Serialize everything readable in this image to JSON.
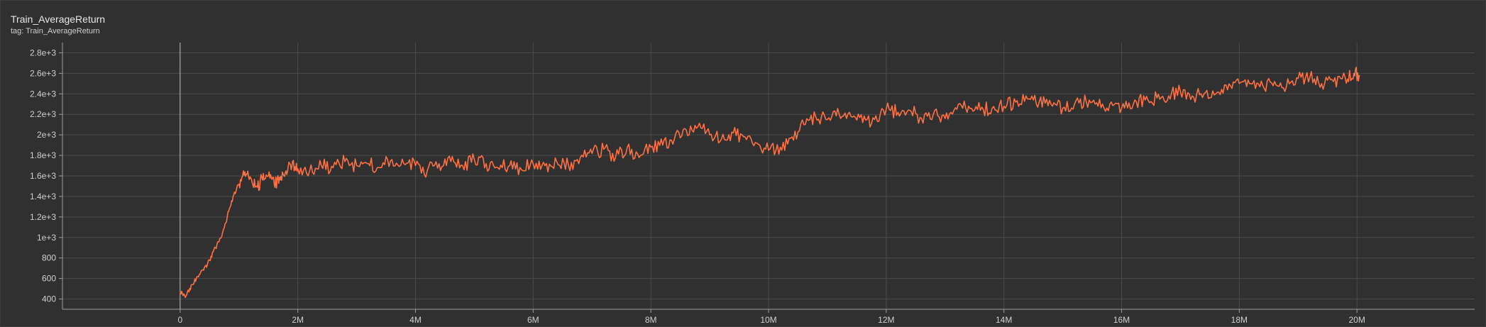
{
  "header": {
    "title": "Train_AverageReturn",
    "subtitle": "tag: Train_AverageReturn"
  },
  "colors": {
    "background": "#303030",
    "grid": "#4a4a4a",
    "axis": "#9e9e9e",
    "line": "#ff7043"
  },
  "chart_data": {
    "type": "line",
    "title": "Train_AverageReturn",
    "xlabel": "",
    "ylabel": "",
    "xlim": [
      -2000000,
      22000000
    ],
    "ylim": [
      300,
      2900
    ],
    "grid": true,
    "x_ticks": [
      0,
      2000000,
      4000000,
      6000000,
      8000000,
      10000000,
      12000000,
      14000000,
      16000000,
      18000000,
      20000000
    ],
    "x_tick_labels": [
      "0",
      "2M",
      "4M",
      "6M",
      "8M",
      "10M",
      "12M",
      "14M",
      "16M",
      "18M",
      "20M"
    ],
    "y_ticks": [
      400,
      600,
      800,
      1000,
      1200,
      1400,
      1600,
      1800,
      2000,
      2200,
      2400,
      2600,
      2800
    ],
    "y_tick_labels": [
      "400",
      "600",
      "800",
      "1e+3",
      "1.2e+3",
      "1.4e+3",
      "1.6e+3",
      "1.8e+3",
      "2e+3",
      "2.2e+3",
      "2.4e+3",
      "2.6e+3",
      "2.8e+3"
    ],
    "series": [
      {
        "x": [
          0,
          100000,
          200000,
          300000,
          400000,
          500000,
          600000,
          700000,
          800000,
          900000,
          1000000,
          1100000,
          1200000,
          1300000,
          1400000,
          1500000,
          1600000,
          1700000,
          1800000,
          1900000,
          2000000,
          2200000,
          2400000,
          2600000,
          2800000,
          3000000,
          3200000,
          3400000,
          3600000,
          3800000,
          4000000,
          4200000,
          4400000,
          4600000,
          4800000,
          5000000,
          5200000,
          5400000,
          5600000,
          5800000,
          6000000,
          6200000,
          6400000,
          6600000,
          6800000,
          7000000,
          7200000,
          7400000,
          7600000,
          7800000,
          8000000,
          8200000,
          8400000,
          8600000,
          8800000,
          9000000,
          9200000,
          9400000,
          9600000,
          9800000,
          10000000,
          10200000,
          10400000,
          10600000,
          10800000,
          11000000,
          11200000,
          11400000,
          11600000,
          11800000,
          12000000,
          12200000,
          12400000,
          12600000,
          12800000,
          13000000,
          13200000,
          13400000,
          13600000,
          13800000,
          14000000,
          14200000,
          14400000,
          14600000,
          14800000,
          15000000,
          15200000,
          15400000,
          15600000,
          15800000,
          16000000,
          16200000,
          16400000,
          16600000,
          16800000,
          17000000,
          17200000,
          17400000,
          17600000,
          17800000,
          18000000,
          18200000,
          18400000,
          18600000,
          18800000,
          19000000,
          19200000,
          19400000,
          19600000,
          19800000,
          19950000,
          20050000
        ],
        "values": [
          470,
          430,
          540,
          620,
          680,
          780,
          900,
          1000,
          1200,
          1400,
          1520,
          1640,
          1580,
          1500,
          1560,
          1600,
          1520,
          1560,
          1650,
          1700,
          1670,
          1650,
          1700,
          1680,
          1740,
          1700,
          1720,
          1680,
          1760,
          1720,
          1700,
          1650,
          1720,
          1740,
          1700,
          1760,
          1720,
          1680,
          1700,
          1660,
          1720,
          1700,
          1740,
          1700,
          1780,
          1820,
          1860,
          1780,
          1880,
          1780,
          1880,
          1900,
          1960,
          2050,
          2080,
          2000,
          1960,
          2020,
          1980,
          1920,
          1850,
          1880,
          1980,
          2100,
          2180,
          2150,
          2200,
          2180,
          2120,
          2150,
          2250,
          2220,
          2240,
          2160,
          2200,
          2160,
          2250,
          2280,
          2240,
          2260,
          2280,
          2320,
          2350,
          2320,
          2300,
          2260,
          2300,
          2320,
          2280,
          2300,
          2260,
          2300,
          2340,
          2360,
          2380,
          2420,
          2380,
          2400,
          2400,
          2440,
          2500,
          2500,
          2480,
          2520,
          2470,
          2550,
          2560,
          2500,
          2520,
          2560,
          2600,
          2580
        ]
      }
    ]
  }
}
